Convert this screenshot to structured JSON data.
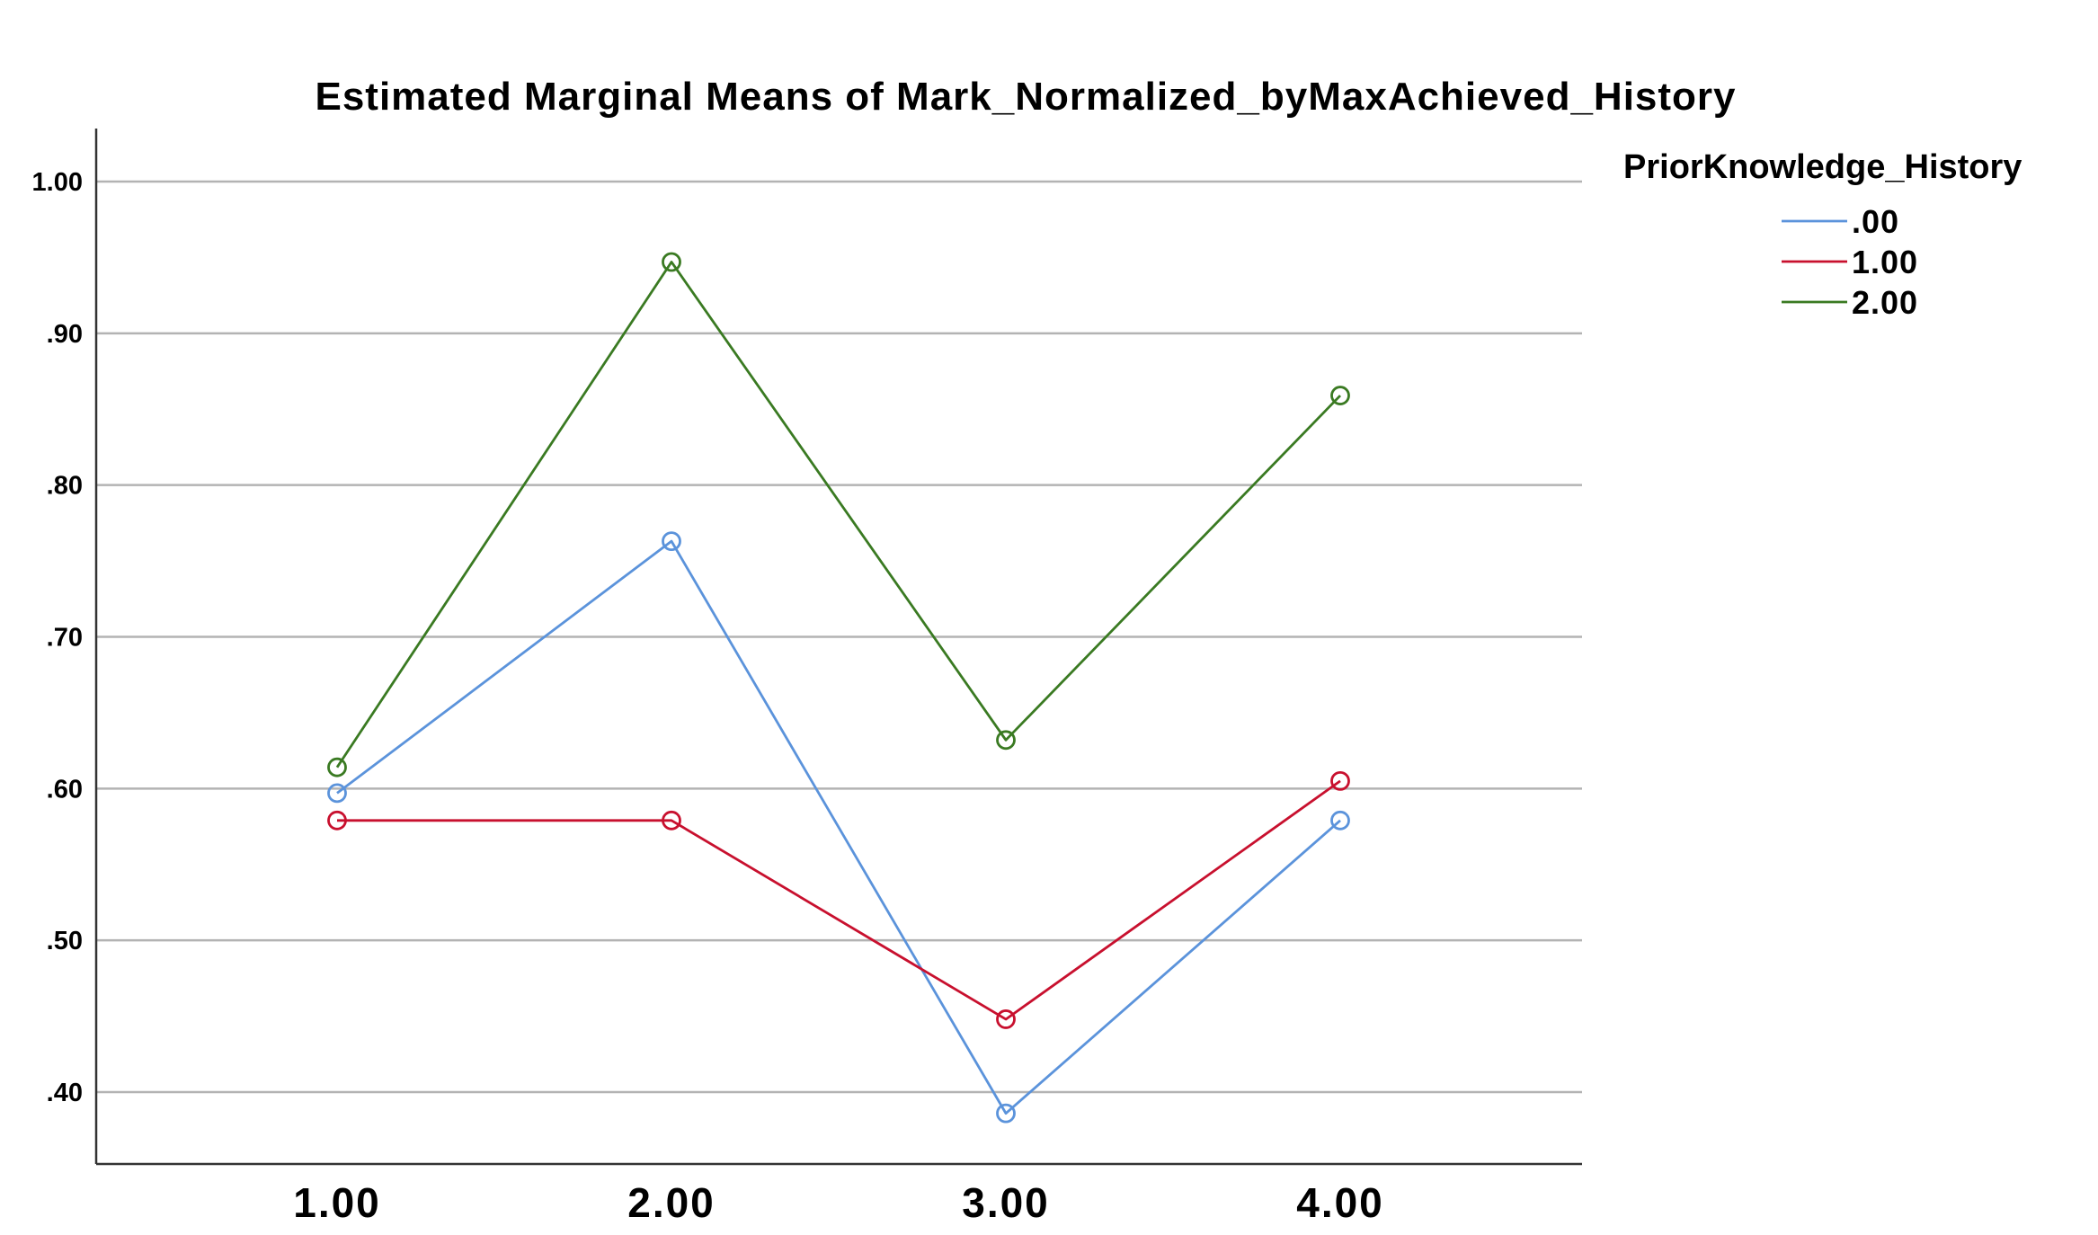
{
  "chart_data": {
    "type": "line",
    "title": "Estimated Marginal Means of Mark_Normalized_byMaxAchieved_History",
    "xlabel": "",
    "ylabel": "",
    "categories": [
      "1.00",
      "2.00",
      "3.00",
      "4.00"
    ],
    "ylim": [
      0.35,
      1.035
    ],
    "yticks": [
      {
        "value": 1.0,
        "label": "1.00"
      },
      {
        "value": 0.9,
        "label": ".90"
      },
      {
        "value": 0.8,
        "label": ".80"
      },
      {
        "value": 0.7,
        "label": ".70"
      },
      {
        "value": 0.6,
        "label": ".60"
      },
      {
        "value": 0.5,
        "label": ".50"
      },
      {
        "value": 0.4,
        "label": ".40"
      }
    ],
    "grid": true,
    "legend": {
      "title": "PriorKnowledge_History",
      "placement": "right"
    },
    "series": [
      {
        "name": ".00",
        "color": "#5b93db",
        "values": [
          0.597,
          0.763,
          0.386,
          0.579
        ]
      },
      {
        "name": "1.00",
        "color": "#c8102e",
        "values": [
          0.579,
          0.579,
          0.448,
          0.605
        ]
      },
      {
        "name": "2.00",
        "color": "#3a7a22",
        "values": [
          0.614,
          0.947,
          0.632,
          0.859
        ]
      }
    ]
  }
}
